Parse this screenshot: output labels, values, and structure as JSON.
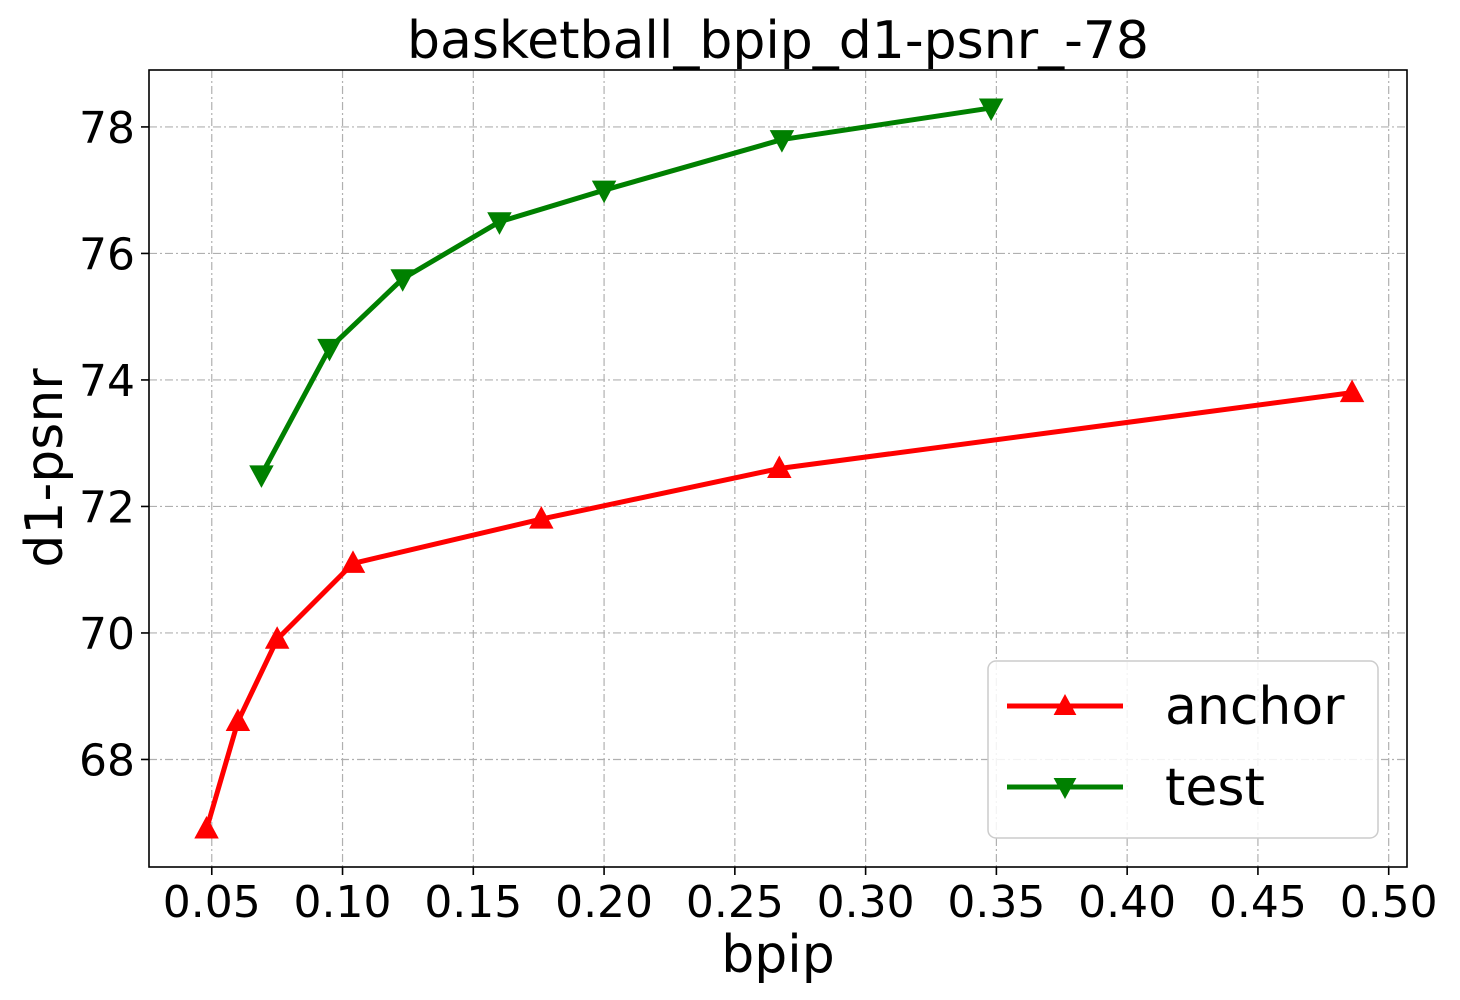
{
  "chart_data": {
    "type": "line",
    "title": "basketball_bpip_d1-psnr_-78",
    "xlabel": "bpip",
    "ylabel": "d1-psnr",
    "xlim": [
      0.026,
      0.507
    ],
    "ylim": [
      66.3,
      78.9
    ],
    "xticks": [
      0.05,
      0.1,
      0.15,
      0.2,
      0.25,
      0.3,
      0.35,
      0.4,
      0.45,
      0.5
    ],
    "xtick_labels": [
      "0.05",
      "0.10",
      "0.15",
      "0.20",
      "0.25",
      "0.30",
      "0.35",
      "0.40",
      "0.45",
      "0.50"
    ],
    "yticks": [
      68,
      70,
      72,
      74,
      76,
      78
    ],
    "ytick_labels": [
      "68",
      "70",
      "72",
      "74",
      "76",
      "78"
    ],
    "grid": true,
    "legend_position": "lower-right",
    "series": [
      {
        "name": "anchor",
        "color": "#ff0000",
        "marker": "triangle-up",
        "x": [
          0.048,
          0.06,
          0.075,
          0.104,
          0.176,
          0.267,
          0.486
        ],
        "y": [
          66.9,
          68.6,
          69.9,
          71.1,
          71.8,
          72.6,
          73.8
        ]
      },
      {
        "name": "test",
        "color": "#008000",
        "marker": "triangle-down",
        "x": [
          0.069,
          0.095,
          0.123,
          0.16,
          0.2,
          0.268,
          0.348
        ],
        "y": [
          72.5,
          74.5,
          75.6,
          76.5,
          77.0,
          77.8,
          78.3
        ]
      }
    ]
  }
}
